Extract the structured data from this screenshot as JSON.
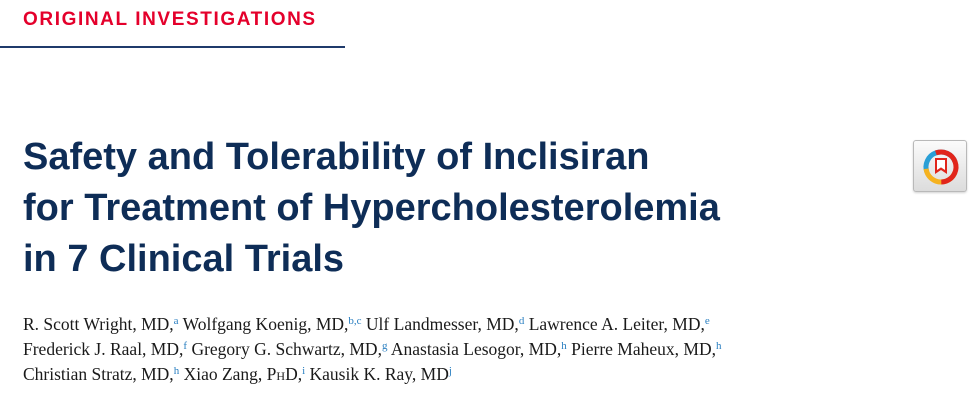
{
  "section": {
    "label": "ORIGINAL INVESTIGATIONS"
  },
  "article": {
    "title_lines": [
      "Safety and Tolerability of Inclisiran",
      "for Treatment of Hypercholesterolemia",
      "in 7 Clinical Trials"
    ]
  },
  "authors": [
    {
      "name": "R. Scott Wright, MD,",
      "aff": "a"
    },
    {
      "name": "Wolfgang Koenig, MD,",
      "aff": "b,c"
    },
    {
      "name": "Ulf Landmesser, MD,",
      "aff": "d"
    },
    {
      "name": "Lawrence A. Leiter, MD,",
      "aff": "e"
    },
    {
      "name": "Frederick J. Raal, MD,",
      "aff": "f"
    },
    {
      "name": "Gregory G. Schwartz, MD,",
      "aff": "g"
    },
    {
      "name": "Anastasia Lesogor, MD,",
      "aff": "h"
    },
    {
      "name": "Pierre Maheux, MD,",
      "aff": "h"
    },
    {
      "name": "Christian Stratz, MD,",
      "aff": "h"
    },
    {
      "name_prefix": "Xiao Zang, P",
      "name_smallcaps": "h",
      "name_suffix": "D,",
      "aff": "i"
    },
    {
      "name": "Kausik K. Ray, MD",
      "aff": "j"
    }
  ],
  "crossmark": {
    "icon": "crossmark-icon",
    "colors": {
      "red": "#e1251b",
      "yellow": "#f5b21f",
      "blue": "#2a9fd6"
    }
  }
}
